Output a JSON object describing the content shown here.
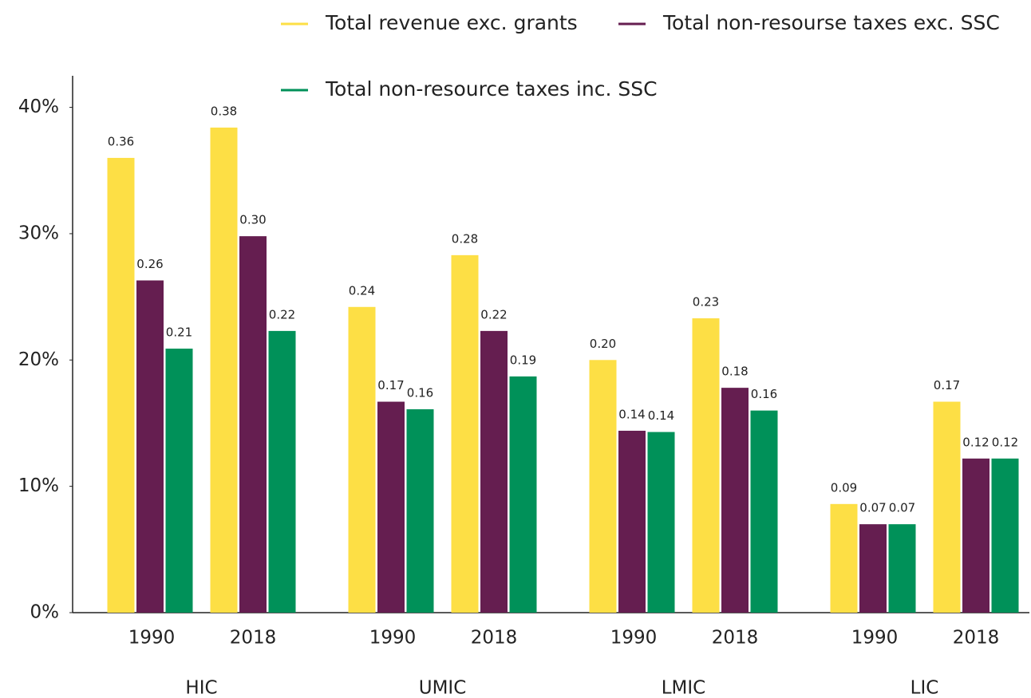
{
  "chart_data": {
    "type": "bar",
    "categories": [
      "1990",
      "2018",
      "1990",
      "2018",
      "1990",
      "2018",
      "1990",
      "2018"
    ],
    "groups": [
      "HIC",
      "UMIC",
      "LMIC",
      "LIC"
    ],
    "series": [
      {
        "name": "Total revenue exc. grants",
        "color": "#fddf45",
        "values": [
          0.36,
          0.384,
          0.242,
          0.283,
          0.2,
          0.233,
          0.086,
          0.167
        ],
        "value_labels": [
          "0.36",
          "0.38",
          "0.24",
          "0.28",
          "0.20",
          "0.23",
          "0.09",
          "0.17"
        ]
      },
      {
        "name": "Total non-resourse taxes exc. SSC",
        "color": "#651e50",
        "values": [
          0.263,
          0.298,
          0.167,
          0.223,
          0.144,
          0.178,
          0.07,
          0.122
        ],
        "value_labels": [
          "0.26",
          "0.30",
          "0.17",
          "0.22",
          "0.14",
          "0.18",
          "0.07",
          "0.12"
        ]
      },
      {
        "name": "Total non-resource taxes inc. SSC",
        "color": "#009159",
        "values": [
          0.209,
          0.223,
          0.161,
          0.187,
          0.143,
          0.16,
          0.07,
          0.122
        ],
        "value_labels": [
          "0.21",
          "0.22",
          "0.16",
          "0.19",
          "0.14",
          "0.16",
          "0.07",
          "0.12"
        ]
      }
    ],
    "ylim": [
      0,
      0.425
    ],
    "yticks": [
      {
        "value": 0,
        "label": "0%"
      },
      {
        "value": 0.1,
        "label": "10%"
      },
      {
        "value": 0.2,
        "label": "20%"
      },
      {
        "value": 0.3,
        "label": "30%"
      },
      {
        "value": 0.4,
        "label": "40%"
      }
    ],
    "legend": "top"
  }
}
